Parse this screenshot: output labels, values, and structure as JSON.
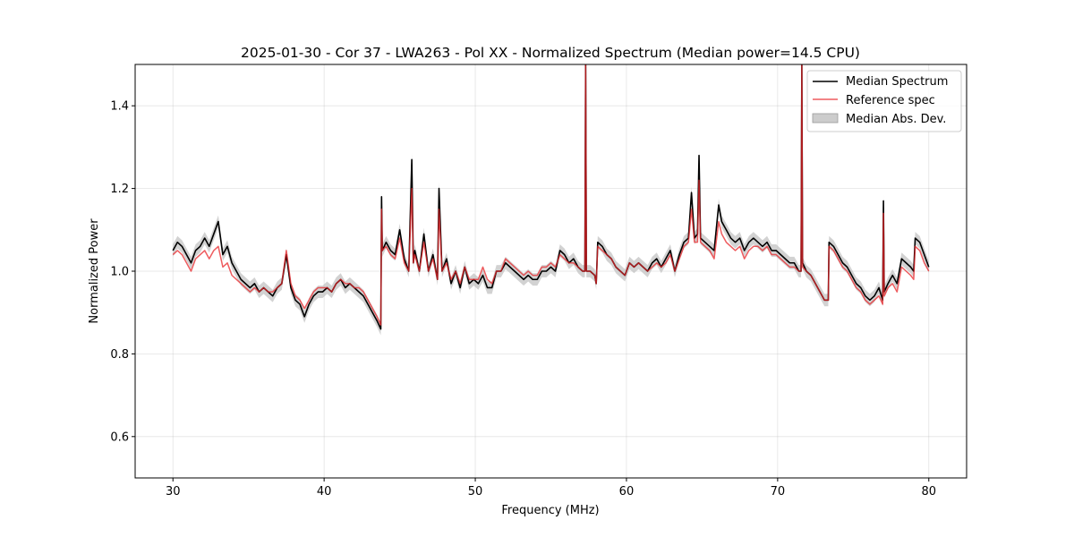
{
  "chart_data": {
    "type": "line",
    "title": "2025-01-30 - Cor 37 - LWA263 - Pol XX - Normalized Spectrum (Median power=14.5 CPU)",
    "xlabel": "Frequency (MHz)",
    "ylabel": "Normalized Power",
    "xlim": [
      27.5,
      82.5
    ],
    "ylim": [
      0.5,
      1.5
    ],
    "xticks": [
      30,
      40,
      50,
      60,
      70,
      80
    ],
    "yticks": [
      0.6,
      0.8,
      1.0,
      1.2,
      1.4
    ],
    "xtick_labels": [
      "30",
      "40",
      "50",
      "60",
      "70",
      "80"
    ],
    "ytick_labels": [
      "0.6",
      "0.8",
      "1.0",
      "1.2",
      "1.4"
    ],
    "grid": true,
    "legend_position": "top-right",
    "colors": {
      "median": "#000000",
      "reference": "#e8262a",
      "mad_band": "#bfbfbf"
    },
    "series": [
      {
        "name": "Median Spectrum",
        "x": [
          30.0,
          30.3,
          30.6,
          30.9,
          31.2,
          31.5,
          31.8,
          32.1,
          32.4,
          32.7,
          33.0,
          33.3,
          33.6,
          33.9,
          34.2,
          34.5,
          34.8,
          35.1,
          35.4,
          35.7,
          36.0,
          36.3,
          36.6,
          36.9,
          37.2,
          37.5,
          37.8,
          38.1,
          38.4,
          38.7,
          39.0,
          39.3,
          39.6,
          39.9,
          40.2,
          40.5,
          40.8,
          41.1,
          41.4,
          41.7,
          42.0,
          42.3,
          42.6,
          42.9,
          43.2,
          43.5,
          43.75,
          43.8,
          43.85,
          44.1,
          44.4,
          44.7,
          45.0,
          45.3,
          45.6,
          45.8,
          45.9,
          46.0,
          46.3,
          46.6,
          46.9,
          47.2,
          47.5,
          47.6,
          47.8,
          48.1,
          48.4,
          48.7,
          49.0,
          49.3,
          49.6,
          49.9,
          50.2,
          50.5,
          50.8,
          51.1,
          51.4,
          51.7,
          52.0,
          52.3,
          52.6,
          52.9,
          53.2,
          53.5,
          53.8,
          54.1,
          54.4,
          54.7,
          55.0,
          55.3,
          55.6,
          55.9,
          56.2,
          56.5,
          56.8,
          57.1,
          57.25,
          57.3,
          57.35,
          57.6,
          57.9,
          58.0,
          58.1,
          58.4,
          58.7,
          59.0,
          59.3,
          59.6,
          59.9,
          60.2,
          60.5,
          60.8,
          61.1,
          61.4,
          61.7,
          62.0,
          62.3,
          62.6,
          62.9,
          63.2,
          63.5,
          63.8,
          64.1,
          64.3,
          64.5,
          64.7,
          64.8,
          64.9,
          65.2,
          65.5,
          65.8,
          66.1,
          66.3,
          66.6,
          66.9,
          67.2,
          67.5,
          67.8,
          68.1,
          68.4,
          68.7,
          69.0,
          69.3,
          69.6,
          69.9,
          70.2,
          70.5,
          70.8,
          71.1,
          71.4,
          71.55,
          71.6,
          71.65,
          71.9,
          72.2,
          72.5,
          72.8,
          73.1,
          73.35,
          73.4,
          73.7,
          74.0,
          74.3,
          74.6,
          74.9,
          75.2,
          75.5,
          75.8,
          76.1,
          76.4,
          76.7,
          76.95,
          77.0,
          77.05,
          77.3,
          77.6,
          77.9,
          78.2,
          78.5,
          78.8,
          79.0,
          79.1,
          79.4,
          79.7,
          80.0
        ],
        "y": [
          1.05,
          1.07,
          1.06,
          1.04,
          1.02,
          1.05,
          1.06,
          1.08,
          1.06,
          1.09,
          1.12,
          1.04,
          1.06,
          1.02,
          1.0,
          0.98,
          0.97,
          0.96,
          0.97,
          0.95,
          0.96,
          0.95,
          0.94,
          0.96,
          0.97,
          1.04,
          0.96,
          0.93,
          0.92,
          0.89,
          0.92,
          0.94,
          0.95,
          0.95,
          0.96,
          0.95,
          0.97,
          0.98,
          0.96,
          0.97,
          0.96,
          0.95,
          0.94,
          0.92,
          0.9,
          0.88,
          0.86,
          1.18,
          1.05,
          1.07,
          1.05,
          1.04,
          1.1,
          1.03,
          1.0,
          1.27,
          1.02,
          1.05,
          1.0,
          1.09,
          1.0,
          1.04,
          0.98,
          1.2,
          1.0,
          1.03,
          0.97,
          1.0,
          0.96,
          1.01,
          0.97,
          0.98,
          0.97,
          0.99,
          0.96,
          0.96,
          1.0,
          1.0,
          1.02,
          1.01,
          1.0,
          0.99,
          0.98,
          0.99,
          0.98,
          0.98,
          1.0,
          1.0,
          1.01,
          1.0,
          1.05,
          1.04,
          1.02,
          1.03,
          1.01,
          1.0,
          1.0,
          1.5,
          1.0,
          1.0,
          0.99,
          0.97,
          1.07,
          1.06,
          1.04,
          1.03,
          1.01,
          1.0,
          0.99,
          1.02,
          1.01,
          1.02,
          1.01,
          1.0,
          1.02,
          1.03,
          1.01,
          1.03,
          1.05,
          1.0,
          1.04,
          1.07,
          1.08,
          1.19,
          1.08,
          1.09,
          1.28,
          1.08,
          1.07,
          1.06,
          1.05,
          1.16,
          1.12,
          1.1,
          1.08,
          1.07,
          1.08,
          1.05,
          1.07,
          1.08,
          1.07,
          1.06,
          1.07,
          1.05,
          1.05,
          1.04,
          1.03,
          1.02,
          1.02,
          1.0,
          1.0,
          1.5,
          1.02,
          1.0,
          0.99,
          0.97,
          0.95,
          0.93,
          0.93,
          1.07,
          1.06,
          1.04,
          1.02,
          1.01,
          0.99,
          0.97,
          0.96,
          0.94,
          0.93,
          0.94,
          0.96,
          0.93,
          1.17,
          0.95,
          0.97,
          0.99,
          0.97,
          1.03,
          1.02,
          1.01,
          1.0,
          1.08,
          1.07,
          1.04,
          1.01
        ]
      },
      {
        "name": "Reference spec",
        "x": [
          30.0,
          30.3,
          30.6,
          30.9,
          31.2,
          31.5,
          31.8,
          32.1,
          32.4,
          32.7,
          33.0,
          33.3,
          33.6,
          33.9,
          34.2,
          34.5,
          34.8,
          35.1,
          35.4,
          35.7,
          36.0,
          36.3,
          36.6,
          36.9,
          37.2,
          37.5,
          37.8,
          38.1,
          38.4,
          38.7,
          39.0,
          39.3,
          39.6,
          39.9,
          40.2,
          40.5,
          40.8,
          41.1,
          41.4,
          41.7,
          42.0,
          42.3,
          42.6,
          42.9,
          43.2,
          43.5,
          43.75,
          43.8,
          43.85,
          44.1,
          44.4,
          44.7,
          45.0,
          45.3,
          45.6,
          45.8,
          45.9,
          46.0,
          46.3,
          46.6,
          46.9,
          47.2,
          47.5,
          47.6,
          47.8,
          48.1,
          48.4,
          48.7,
          49.0,
          49.3,
          49.6,
          49.9,
          50.2,
          50.5,
          50.8,
          51.1,
          51.4,
          51.7,
          52.0,
          52.3,
          52.6,
          52.9,
          53.2,
          53.5,
          53.8,
          54.1,
          54.4,
          54.7,
          55.0,
          55.3,
          55.6,
          55.9,
          56.2,
          56.5,
          56.8,
          57.1,
          57.25,
          57.3,
          57.35,
          57.6,
          57.9,
          58.0,
          58.1,
          58.4,
          58.7,
          59.0,
          59.3,
          59.6,
          59.9,
          60.2,
          60.5,
          60.8,
          61.1,
          61.4,
          61.7,
          62.0,
          62.3,
          62.6,
          62.9,
          63.2,
          63.5,
          63.8,
          64.1,
          64.3,
          64.5,
          64.7,
          64.8,
          64.9,
          65.2,
          65.5,
          65.8,
          66.1,
          66.3,
          66.6,
          66.9,
          67.2,
          67.5,
          67.8,
          68.1,
          68.4,
          68.7,
          69.0,
          69.3,
          69.6,
          69.9,
          70.2,
          70.5,
          70.8,
          71.1,
          71.4,
          71.55,
          71.6,
          71.65,
          71.9,
          72.2,
          72.5,
          72.8,
          73.1,
          73.35,
          73.4,
          73.7,
          74.0,
          74.3,
          74.6,
          74.9,
          75.2,
          75.5,
          75.8,
          76.1,
          76.4,
          76.7,
          76.95,
          77.0,
          77.05,
          77.3,
          77.6,
          77.9,
          78.2,
          78.5,
          78.8,
          79.0,
          79.1,
          79.4,
          79.7,
          80.0
        ],
        "y": [
          1.04,
          1.05,
          1.04,
          1.02,
          1.0,
          1.03,
          1.04,
          1.05,
          1.03,
          1.05,
          1.06,
          1.01,
          1.02,
          0.99,
          0.98,
          0.97,
          0.96,
          0.95,
          0.96,
          0.95,
          0.96,
          0.95,
          0.95,
          0.96,
          0.97,
          1.05,
          0.97,
          0.94,
          0.93,
          0.91,
          0.93,
          0.95,
          0.96,
          0.96,
          0.96,
          0.95,
          0.97,
          0.98,
          0.97,
          0.97,
          0.96,
          0.96,
          0.95,
          0.93,
          0.91,
          0.89,
          0.87,
          1.15,
          1.05,
          1.06,
          1.04,
          1.03,
          1.08,
          1.02,
          1.0,
          1.2,
          1.02,
          1.04,
          1.0,
          1.07,
          1.0,
          1.03,
          0.98,
          1.15,
          1.0,
          1.02,
          0.98,
          1.0,
          0.97,
          1.01,
          0.98,
          0.98,
          0.98,
          1.01,
          0.98,
          0.97,
          1.0,
          1.0,
          1.03,
          1.02,
          1.01,
          1.0,
          0.99,
          1.0,
          0.99,
          0.99,
          1.01,
          1.01,
          1.02,
          1.01,
          1.04,
          1.03,
          1.02,
          1.02,
          1.01,
          1.0,
          1.0,
          1.5,
          1.0,
          1.0,
          0.99,
          0.97,
          1.06,
          1.05,
          1.04,
          1.03,
          1.01,
          1.0,
          0.99,
          1.02,
          1.01,
          1.02,
          1.01,
          1.0,
          1.01,
          1.02,
          1.01,
          1.02,
          1.04,
          1.0,
          1.03,
          1.06,
          1.07,
          1.15,
          1.07,
          1.07,
          1.22,
          1.07,
          1.06,
          1.05,
          1.03,
          1.12,
          1.09,
          1.07,
          1.06,
          1.05,
          1.06,
          1.03,
          1.05,
          1.06,
          1.06,
          1.05,
          1.06,
          1.04,
          1.04,
          1.03,
          1.02,
          1.01,
          1.01,
          1.0,
          1.0,
          1.5,
          1.01,
          1.0,
          0.99,
          0.97,
          0.95,
          0.93,
          0.93,
          1.06,
          1.05,
          1.03,
          1.01,
          1.0,
          0.98,
          0.96,
          0.95,
          0.93,
          0.92,
          0.93,
          0.94,
          0.92,
          1.14,
          0.94,
          0.96,
          0.97,
          0.95,
          1.01,
          1.0,
          0.99,
          0.98,
          1.06,
          1.05,
          1.02,
          1.0
        ]
      }
    ],
    "band": {
      "name": "Median Abs. Dev.",
      "half_width": 0.015
    },
    "legend": [
      "Median Spectrum",
      "Reference spec",
      "Median Abs. Dev."
    ]
  }
}
